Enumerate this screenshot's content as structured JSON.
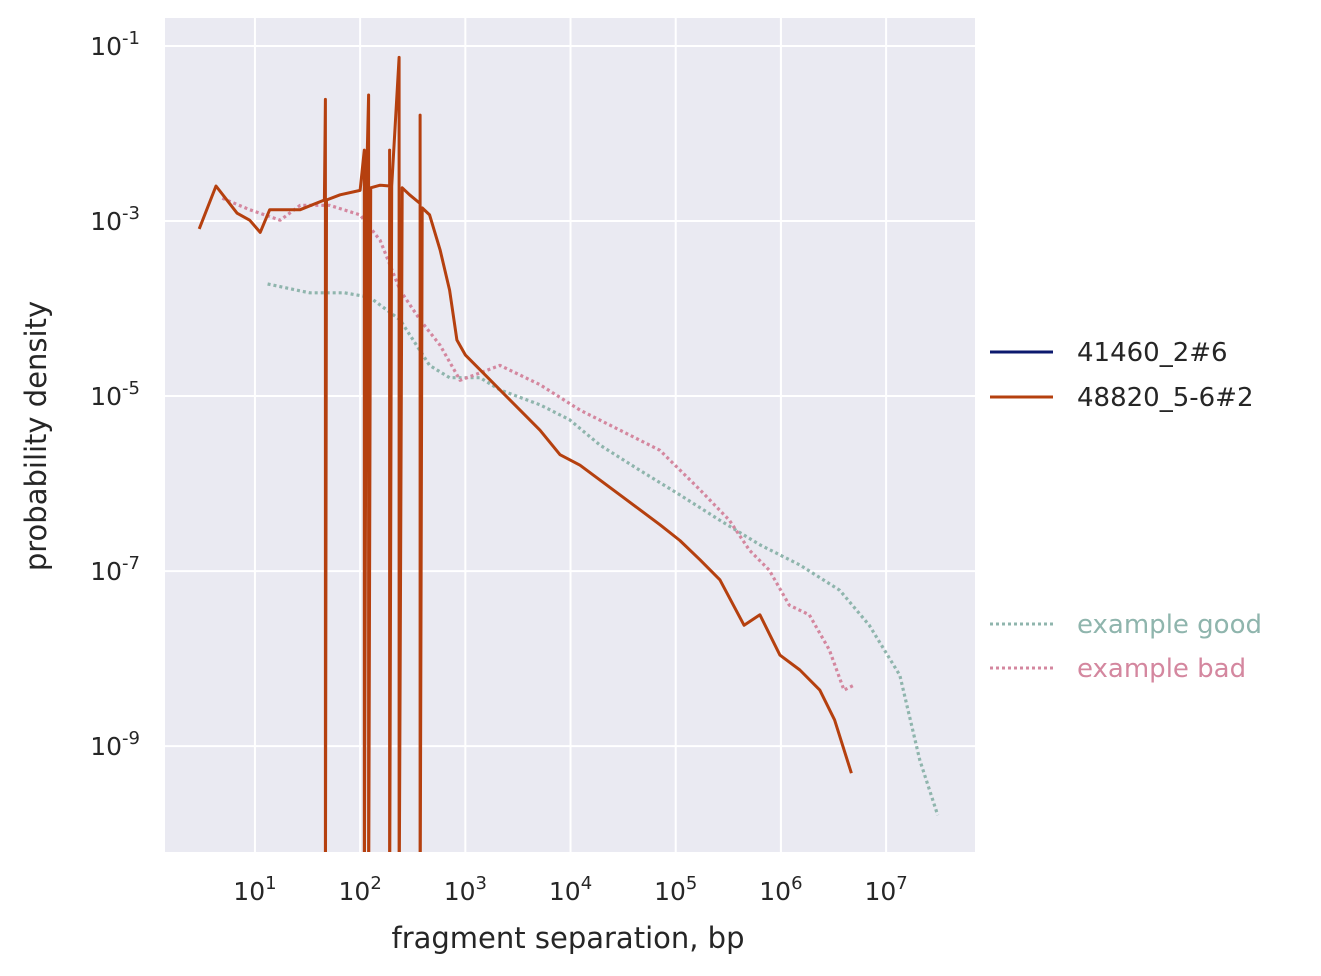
{
  "chart_data": {
    "type": "line",
    "xlabel": "fragment separation, bp",
    "ylabel": "probability density",
    "xscale": "log",
    "yscale": "log",
    "xlim_log10": [
      0.145,
      7.845
    ],
    "ylim_log10": [
      -10.21,
      -0.68
    ],
    "grid": true,
    "legend_placement": "right, outside",
    "x_ticks": {
      "base": "10",
      "exponents": [
        "1",
        "2",
        "3",
        "4",
        "5",
        "6",
        "7"
      ]
    },
    "y_ticks": {
      "base": "10",
      "exponents": [
        "-1",
        "-3",
        "-5",
        "-7",
        "-9"
      ]
    },
    "point_format": "[log10(separation), log10(density)]",
    "series": [
      {
        "name": "41460_2#6",
        "color": "#0c1a6e",
        "style": "solid",
        "points": []
      },
      {
        "name": "48820_5-6#2",
        "color": "#b5400f",
        "style": "solid",
        "points": [
          [
            0.47,
            -3.09
          ],
          [
            0.63,
            -2.6
          ],
          [
            0.83,
            -2.91
          ],
          [
            0.95,
            -2.99
          ],
          [
            1.05,
            -3.13
          ],
          [
            1.14,
            -2.87
          ],
          [
            1.43,
            -2.87
          ],
          [
            1.66,
            -2.76
          ],
          [
            1.67,
            -1.61
          ],
          [
            1.67,
            -11
          ],
          [
            1.68,
            -2.76
          ],
          [
            1.81,
            -2.7
          ],
          [
            2.0,
            -2.65
          ],
          [
            2.04,
            -2.19
          ],
          [
            2.04,
            -11
          ],
          [
            2.06,
            -2.64
          ],
          [
            2.08,
            -1.56
          ],
          [
            2.08,
            -11
          ],
          [
            2.1,
            -2.62
          ],
          [
            2.19,
            -2.59
          ],
          [
            2.28,
            -2.6
          ],
          [
            2.28,
            -2.19
          ],
          [
            2.28,
            -11
          ],
          [
            2.3,
            -2.6
          ],
          [
            2.37,
            -1.13
          ],
          [
            2.37,
            -11
          ],
          [
            2.4,
            -2.62
          ],
          [
            2.47,
            -2.7
          ],
          [
            2.57,
            -2.8
          ],
          [
            2.57,
            -1.79
          ],
          [
            2.57,
            -11
          ],
          [
            2.59,
            -2.85
          ],
          [
            2.66,
            -2.93
          ],
          [
            2.76,
            -3.33
          ],
          [
            2.85,
            -3.79
          ],
          [
            2.92,
            -4.36
          ],
          [
            3.0,
            -4.53
          ],
          [
            3.14,
            -4.7
          ],
          [
            3.33,
            -4.93
          ],
          [
            3.52,
            -5.16
          ],
          [
            3.71,
            -5.39
          ],
          [
            3.9,
            -5.67
          ],
          [
            4.09,
            -5.79
          ],
          [
            4.28,
            -5.96
          ],
          [
            4.47,
            -6.13
          ],
          [
            4.66,
            -6.3
          ],
          [
            4.85,
            -6.47
          ],
          [
            5.04,
            -6.65
          ],
          [
            5.23,
            -6.87
          ],
          [
            5.42,
            -7.1
          ],
          [
            5.65,
            -7.62
          ],
          [
            5.8,
            -7.5
          ],
          [
            5.99,
            -7.96
          ],
          [
            6.18,
            -8.13
          ],
          [
            6.37,
            -8.36
          ],
          [
            6.51,
            -8.7
          ],
          [
            6.67,
            -9.31
          ]
        ]
      },
      {
        "name": "example good",
        "color": "#8fb5ad",
        "style": "dotted",
        "points": [
          [
            1.12,
            -3.72
          ],
          [
            1.52,
            -3.82
          ],
          [
            1.85,
            -3.82
          ],
          [
            2.09,
            -3.87
          ],
          [
            2.38,
            -4.13
          ],
          [
            2.66,
            -4.65
          ],
          [
            2.85,
            -4.79
          ],
          [
            3.14,
            -4.79
          ],
          [
            3.33,
            -4.93
          ],
          [
            3.71,
            -5.1
          ],
          [
            3.99,
            -5.27
          ],
          [
            4.28,
            -5.56
          ],
          [
            4.66,
            -5.85
          ],
          [
            5.04,
            -6.13
          ],
          [
            5.42,
            -6.42
          ],
          [
            5.8,
            -6.7
          ],
          [
            6.18,
            -6.93
          ],
          [
            6.56,
            -7.22
          ],
          [
            6.84,
            -7.62
          ],
          [
            7.13,
            -8.19
          ],
          [
            7.32,
            -9.16
          ],
          [
            7.49,
            -9.79
          ]
        ]
      },
      {
        "name": "example bad",
        "color": "#d4879f",
        "style": "dotted",
        "points": [
          [
            0.69,
            -2.74
          ],
          [
            0.95,
            -2.87
          ],
          [
            1.24,
            -2.99
          ],
          [
            1.43,
            -2.82
          ],
          [
            1.71,
            -2.82
          ],
          [
            2.0,
            -2.93
          ],
          [
            2.19,
            -3.22
          ],
          [
            2.38,
            -3.79
          ],
          [
            2.57,
            -4.13
          ],
          [
            2.76,
            -4.42
          ],
          [
            2.95,
            -4.82
          ],
          [
            3.33,
            -4.65
          ],
          [
            3.71,
            -4.87
          ],
          [
            4.09,
            -5.16
          ],
          [
            4.47,
            -5.39
          ],
          [
            4.85,
            -5.62
          ],
          [
            5.23,
            -6.07
          ],
          [
            5.51,
            -6.42
          ],
          [
            5.7,
            -6.76
          ],
          [
            5.89,
            -6.99
          ],
          [
            6.08,
            -7.39
          ],
          [
            6.27,
            -7.5
          ],
          [
            6.46,
            -7.9
          ],
          [
            6.6,
            -8.36
          ],
          [
            6.7,
            -8.3
          ]
        ]
      }
    ],
    "legend": [
      {
        "label": "41460_2#6",
        "color": "#0c1a6e",
        "style": "solid",
        "text_color": "#262626"
      },
      {
        "label": "48820_5-6#2",
        "color": "#b5400f",
        "style": "solid",
        "text_color": "#262626"
      },
      {
        "label": "example good",
        "color": "#8fb5ad",
        "style": "dotted",
        "text_color": "#8fb5ad"
      },
      {
        "label": "example bad",
        "color": "#d4879f",
        "style": "dotted",
        "text_color": "#d4879f"
      }
    ]
  }
}
